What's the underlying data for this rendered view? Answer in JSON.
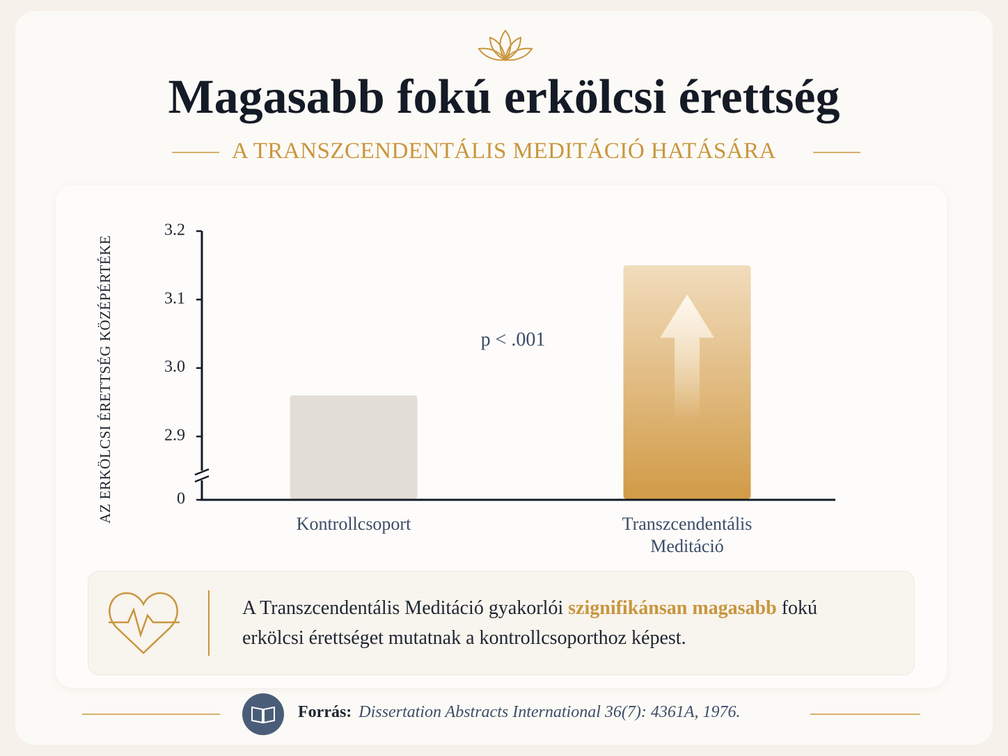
{
  "chart_data": {
    "type": "bar",
    "title": "Magasabb fokú erkölcsi érettség",
    "subtitle": "A TRANSZCENDENTÁLIS MEDITÁCIÓ HATÁSÁRA",
    "y_label": "AZ ERKÖLCSI ÉRETTSÉG KÖZÉPÉRTÉKE",
    "categories": [
      "Kontrollcsoport",
      "Transzcendentális Meditáció"
    ],
    "values": [
      2.96,
      3.15
    ],
    "colors": [
      "#e2ddd6",
      "#d4a04e"
    ],
    "annotation": "p < .001",
    "ylim": [
      0,
      3.2
    ],
    "yticks": [
      0,
      2.9,
      {
        "value": 3,
        "label": "3.0"
      },
      3.1,
      3.2
    ],
    "y_axis_break": true,
    "grid": false
  },
  "callout": {
    "text_before": "A Transzcendentális Meditáció gyakorlói",
    "highlight": "szignifikánsan magasabb",
    "text_after": "fokú erkölcsi érettséget mutatnak a kontrollcsoporthoz képest."
  },
  "source": {
    "label": "Forrás:",
    "citation": "Dissertation Abstracts International 36(7): 4361A, 1976."
  }
}
